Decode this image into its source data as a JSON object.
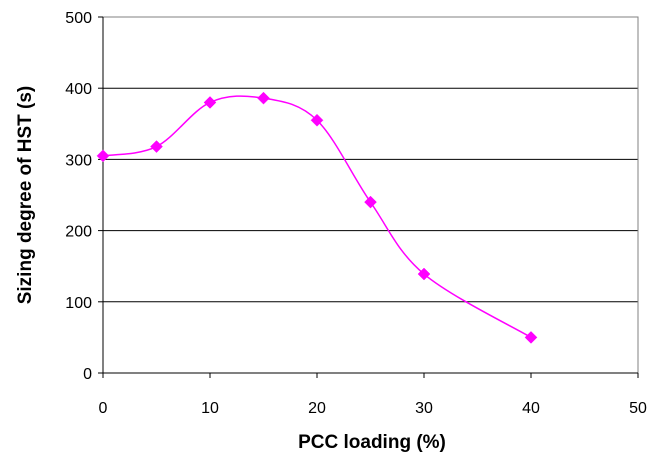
{
  "chart_data": {
    "type": "line",
    "title": "",
    "xlabel": "PCC loading (%)",
    "ylabel": "Sizing degree of HST (s)",
    "xlim": [
      0,
      50
    ],
    "ylim": [
      0,
      500
    ],
    "xticks": [
      0,
      10,
      20,
      30,
      40,
      50
    ],
    "yticks": [
      0,
      100,
      200,
      300,
      400,
      500
    ],
    "grid": "horizontal",
    "legend": "none",
    "smoothed": true,
    "series": [
      {
        "x": [
          0,
          5,
          10,
          15,
          20,
          25,
          30,
          40
        ],
        "y": [
          305,
          318,
          380,
          386,
          355,
          240,
          139,
          50
        ],
        "color": "#FF00FF",
        "marker": "diamond"
      }
    ]
  }
}
